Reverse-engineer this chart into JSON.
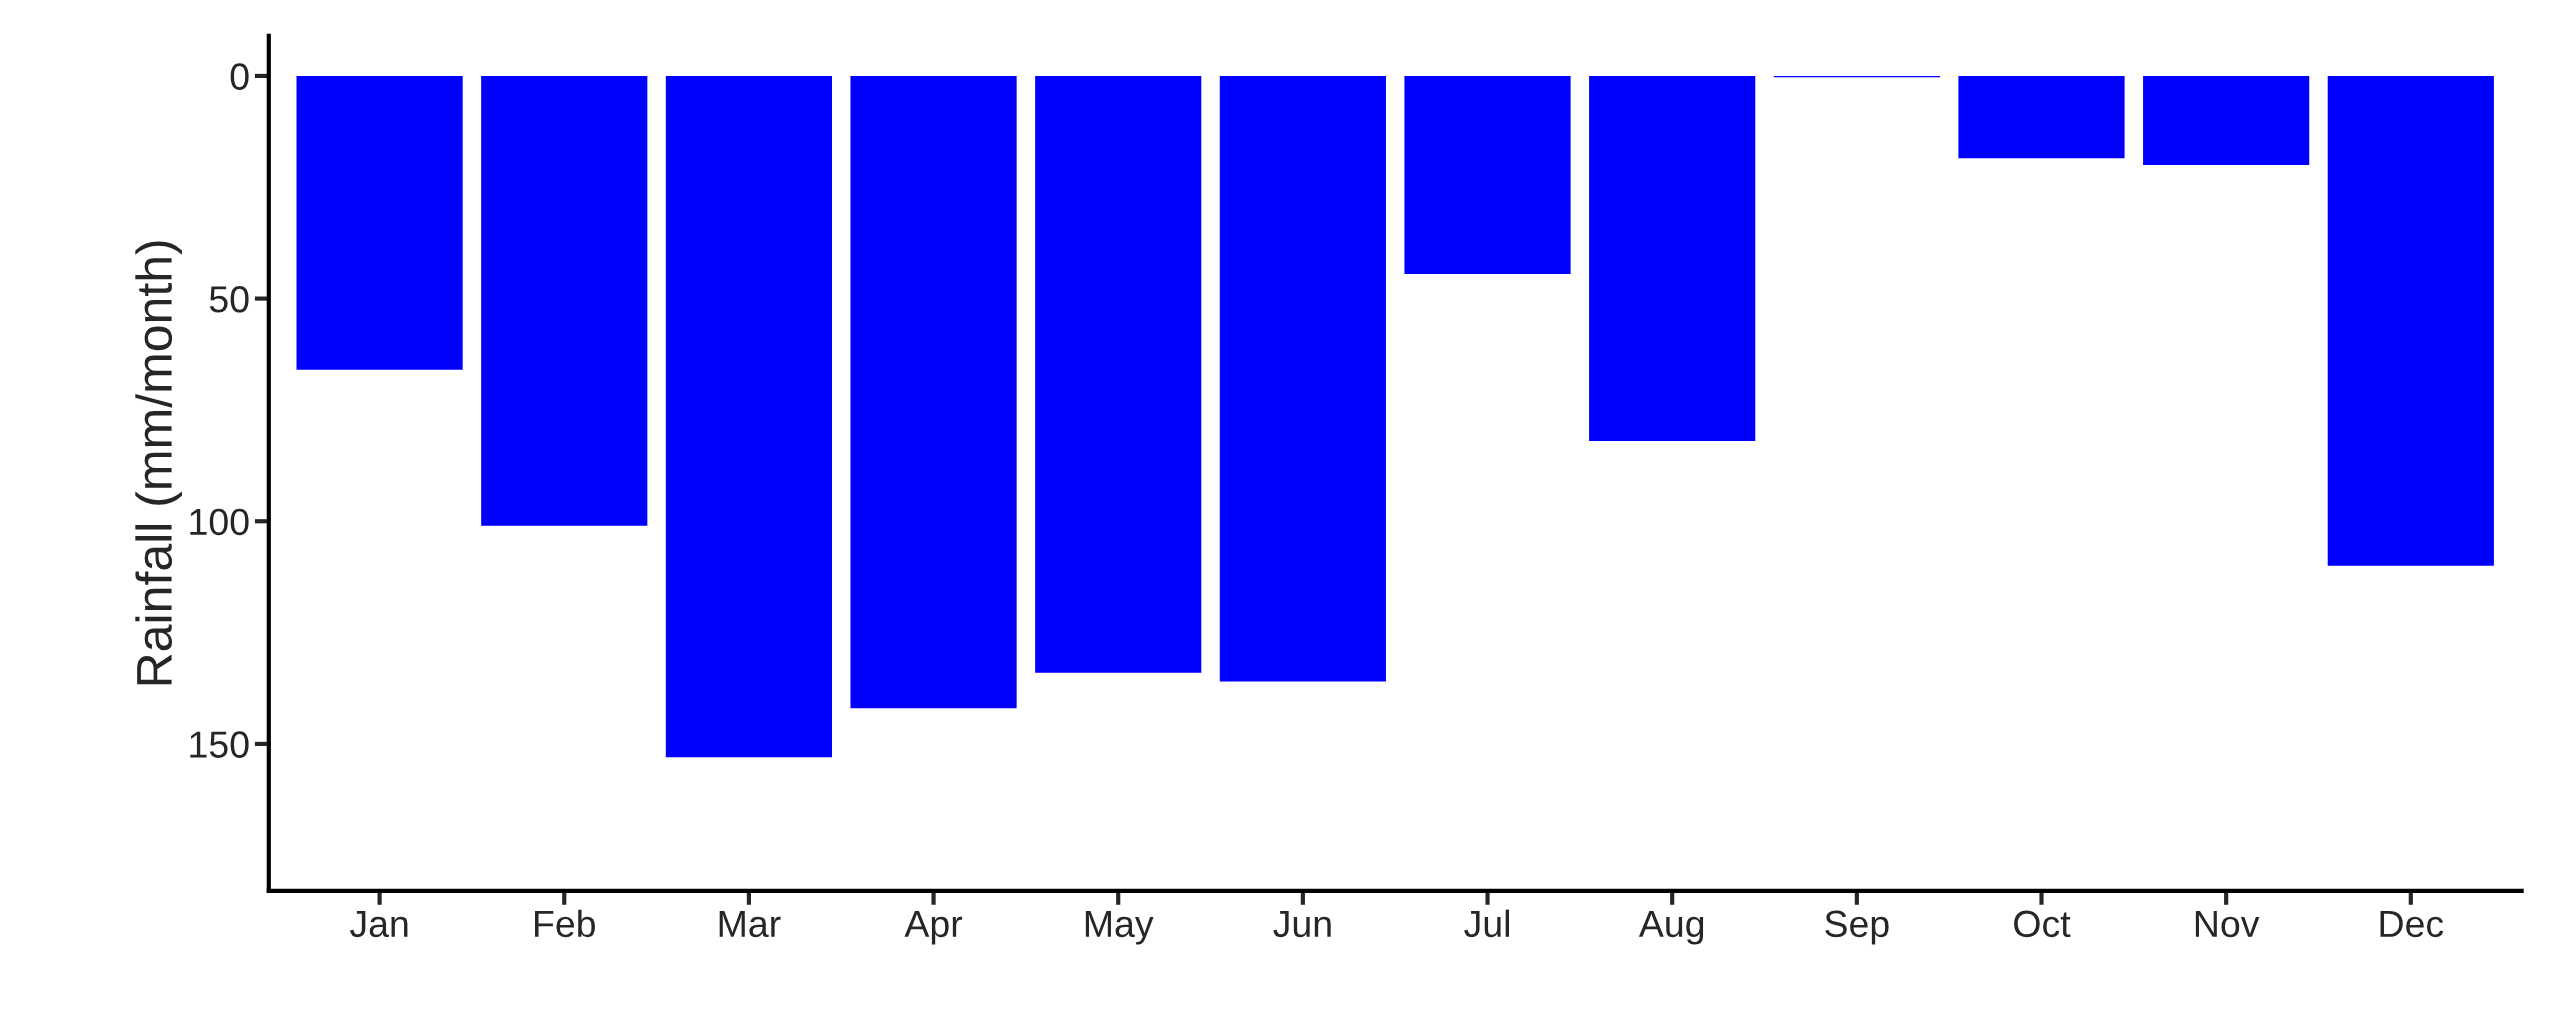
{
  "chart_data": {
    "type": "bar",
    "ylabel": "Rainfall (mm/month)",
    "categories": [
      "Jan",
      "Feb",
      "Mar",
      "Apr",
      "May",
      "Jun",
      "Jul",
      "Aug",
      "Sep",
      "Oct",
      "Nov",
      "Dec"
    ],
    "values": [
      66,
      101,
      153,
      142,
      134,
      136,
      44.5,
      82,
      0.3,
      18.5,
      20,
      110
    ],
    "color": "#0000ff",
    "ylim": [
      183,
      -9
    ],
    "yticks": [
      0,
      50,
      100,
      150
    ],
    "grid": false
  }
}
